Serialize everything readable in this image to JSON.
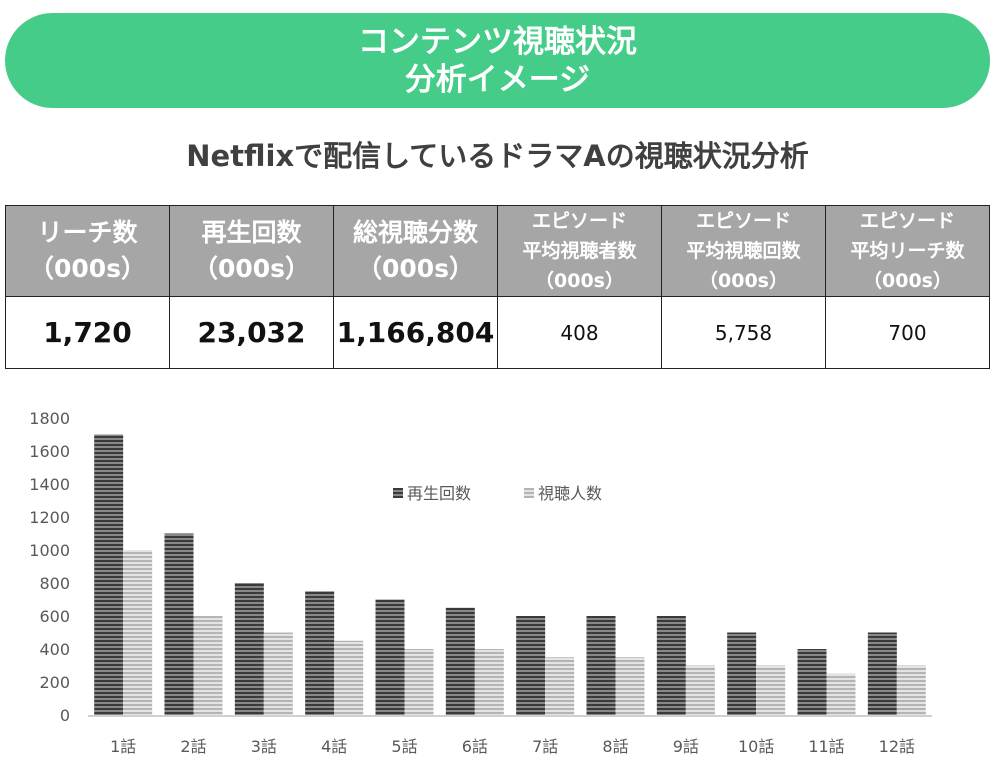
{
  "banner": {
    "line1": "コンテンツ視聴状況",
    "line2": "分析イメージ"
  },
  "subtitle": "Netflixで配信しているドラマAの視聴状況分析",
  "colors": {
    "banner": "#44cc88",
    "table_header": "#a6a6a6",
    "series_dark": "#555555",
    "series_light": "#c8c8c8"
  },
  "kpi_table": {
    "headers": [
      {
        "line1": "リーチ数",
        "line2": "（000s）"
      },
      {
        "line1": "再生回数",
        "line2": "（000s）"
      },
      {
        "line1": "総視聴分数",
        "line2": "（000s）"
      },
      {
        "line1": "エピソード",
        "line2": "平均視聴者数",
        "line3": "（000s）"
      },
      {
        "line1": "エピソード",
        "line2": "平均視聴回数",
        "line3": "（000s）"
      },
      {
        "line1": "エピソード",
        "line2": "平均リーチ数",
        "line3": "（000s）"
      }
    ],
    "values": [
      "1,720",
      "23,032",
      "1,166,804",
      "408",
      "5,758",
      "700"
    ]
  },
  "chart_data": {
    "type": "bar",
    "categories": [
      "1話",
      "2話",
      "3話",
      "4話",
      "5話",
      "6話",
      "7話",
      "8話",
      "9話",
      "10話",
      "11話",
      "12話"
    ],
    "series": [
      {
        "name": "再生回数",
        "values": [
          1700,
          1100,
          800,
          750,
          700,
          650,
          600,
          600,
          600,
          500,
          400,
          500
        ]
      },
      {
        "name": "視聴人数",
        "values": [
          1000,
          600,
          500,
          450,
          400,
          400,
          350,
          350,
          300,
          300,
          250,
          300
        ]
      }
    ],
    "yticks": [
      0,
      200,
      400,
      600,
      800,
      1000,
      1200,
      1400,
      1600,
      1800
    ],
    "ylim": [
      0,
      1800
    ],
    "grid": false,
    "legend": "top-center"
  }
}
